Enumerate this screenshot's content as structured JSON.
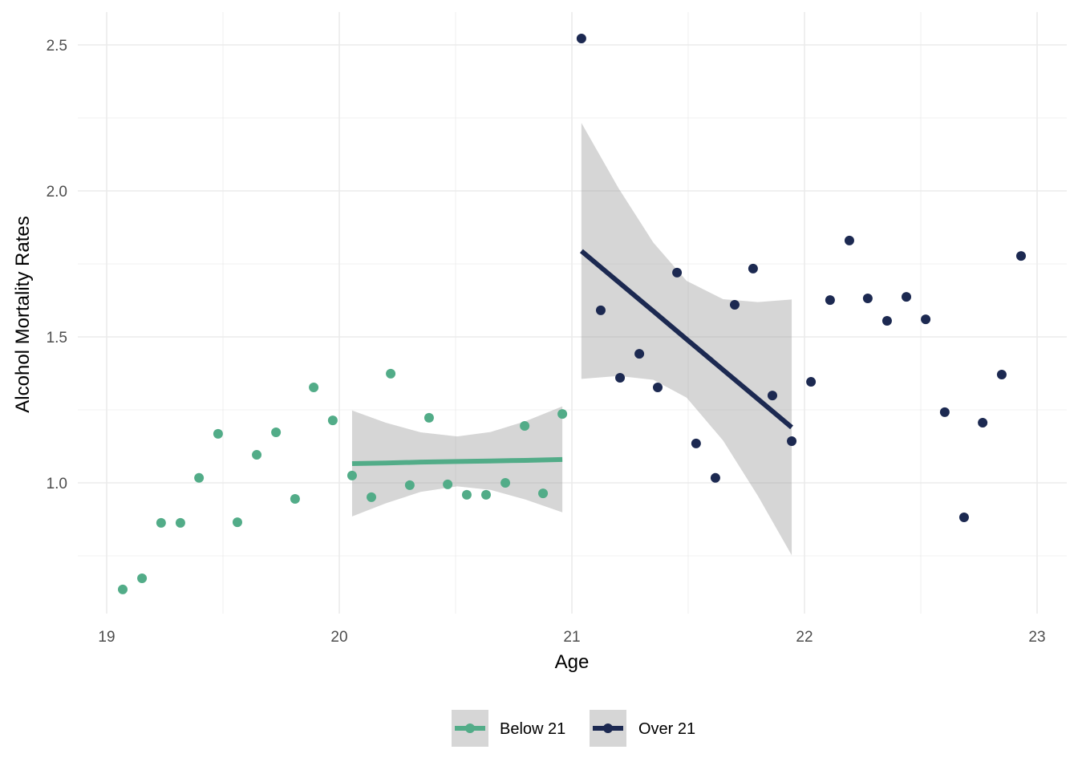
{
  "chart_data": {
    "type": "scatter",
    "title": "",
    "xlabel": "Age",
    "ylabel": "Alcohol Mortality Rates",
    "xlim": [
      18.88,
      23.12
    ],
    "ylim": [
      0.59,
      2.56
    ],
    "x_ticks": [
      "19",
      "20",
      "21",
      "22",
      "23"
    ],
    "y_ticks": [
      "1.0",
      "1.5",
      "2.0",
      "2.5"
    ],
    "grid": true,
    "legend_position": "bottom",
    "series": [
      {
        "name": "Below 21",
        "color": "#52AC88",
        "x": [
          19.069,
          19.152,
          19.234,
          19.317,
          19.397,
          19.479,
          19.562,
          19.645,
          19.728,
          19.81,
          19.89,
          19.972,
          20.055,
          20.138,
          20.221,
          20.303,
          20.386,
          20.466,
          20.548,
          20.631,
          20.714,
          20.797,
          20.876,
          20.959
        ],
        "y": [
          0.635,
          0.673,
          0.863,
          0.863,
          1.017,
          1.168,
          0.865,
          1.096,
          1.173,
          0.945,
          1.327,
          1.214,
          1.025,
          0.951,
          1.374,
          0.992,
          1.223,
          0.995,
          0.959,
          0.959,
          1.0,
          1.195,
          0.964,
          1.236
        ],
        "fit": {
          "x": [
            20.055,
            20.2,
            20.35,
            20.507,
            20.65,
            20.8,
            20.959
          ],
          "y": [
            1.066,
            1.068,
            1.071,
            1.073,
            1.075,
            1.077,
            1.08
          ],
          "lower": [
            0.885,
            0.93,
            0.969,
            0.988,
            0.976,
            0.943,
            0.899
          ],
          "upper": [
            1.248,
            1.206,
            1.173,
            1.159,
            1.174,
            1.211,
            1.262
          ]
        }
      },
      {
        "name": "Over 21",
        "color": "#1C2951",
        "x": [
          21.041,
          21.124,
          21.207,
          21.29,
          21.369,
          21.452,
          21.534,
          21.617,
          21.7,
          21.779,
          21.862,
          21.945,
          22.028,
          22.11,
          22.193,
          22.272,
          22.355,
          22.438,
          22.521,
          22.603,
          22.686,
          22.766,
          22.848,
          22.931
        ],
        "y": [
          2.522,
          1.591,
          1.36,
          1.442,
          1.327,
          1.72,
          1.135,
          1.017,
          1.61,
          1.734,
          1.299,
          1.143,
          1.346,
          1.626,
          1.83,
          1.632,
          1.555,
          1.637,
          1.56,
          1.242,
          0.882,
          1.206,
          1.371,
          1.777
        ],
        "fit": {
          "x": [
            21.041,
            21.2,
            21.35,
            21.493,
            21.65,
            21.8,
            21.945
          ],
          "y": [
            1.794,
            1.688,
            1.588,
            1.492,
            1.387,
            1.287,
            1.19
          ],
          "lower": [
            1.356,
            1.366,
            1.353,
            1.292,
            1.145,
            0.955,
            0.752
          ],
          "upper": [
            2.233,
            2.01,
            1.823,
            1.692,
            1.629,
            1.619,
            1.628
          ]
        }
      }
    ]
  }
}
